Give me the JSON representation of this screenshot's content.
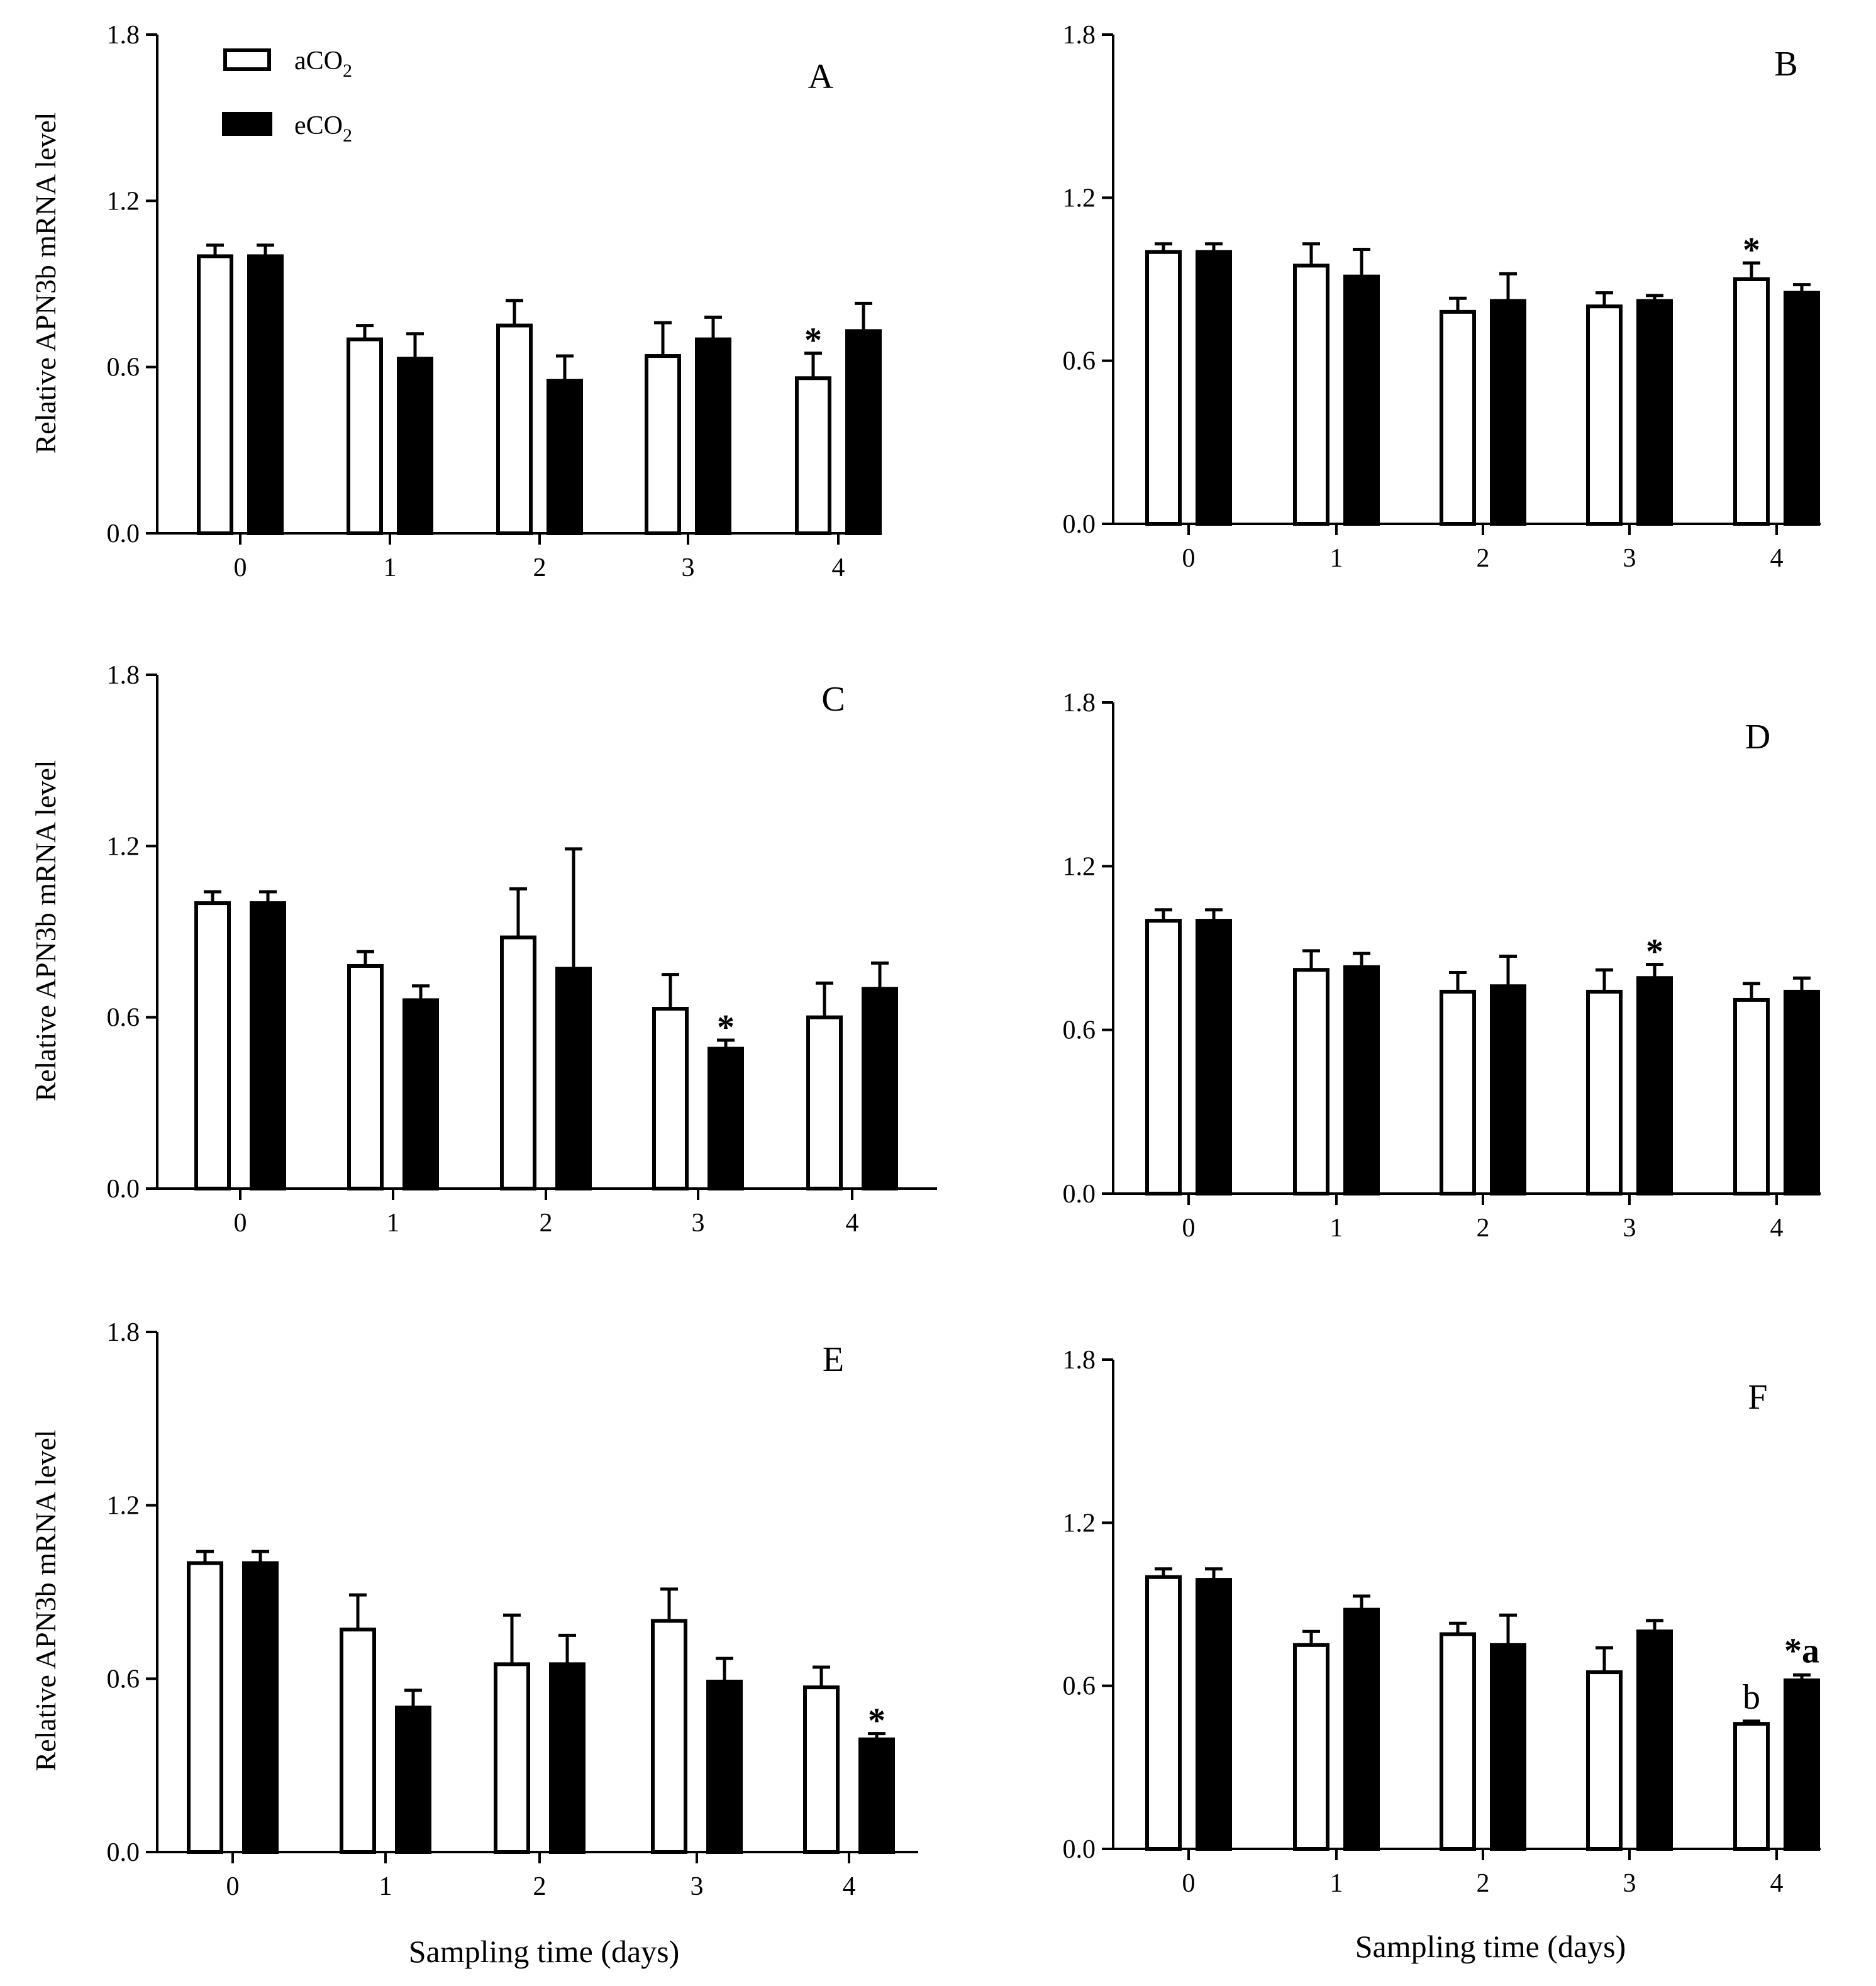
{
  "colors": {
    "aCO2": "#ffffff",
    "eCO2": "#000000",
    "stroke": "#000000"
  },
  "shared": {
    "ylabel": "Relative APN3b mRNA level",
    "xlabel": "Sampling time (days)",
    "legend": {
      "aCO2_prefix": "aCO",
      "eCO2_prefix": "eCO",
      "subscript": "2"
    }
  },
  "chart_data": [
    {
      "type": "bar",
      "panel": "A",
      "categories": [
        "0",
        "1",
        "2",
        "3",
        "4"
      ],
      "ylim": [
        0,
        1.8
      ],
      "yticks": [
        "0.0",
        "0.6",
        "1.2",
        "1.8"
      ],
      "series": [
        {
          "name": "aCO2",
          "values": [
            1.0,
            0.7,
            0.75,
            0.64,
            0.56
          ],
          "errors": [
            0.04,
            0.05,
            0.09,
            0.12,
            0.09
          ]
        },
        {
          "name": "eCO2",
          "values": [
            1.0,
            0.63,
            0.55,
            0.7,
            0.73
          ],
          "errors": [
            0.04,
            0.09,
            0.09,
            0.08,
            0.1
          ]
        }
      ],
      "annotations": [
        {
          "category": 4,
          "series": 0,
          "text": "*"
        }
      ]
    },
    {
      "type": "bar",
      "panel": "B",
      "categories": [
        "0",
        "1",
        "2",
        "3",
        "4"
      ],
      "ylim": [
        0,
        1.8
      ],
      "yticks": [
        "0.0",
        "0.6",
        "1.2",
        "1.8"
      ],
      "series": [
        {
          "name": "aCO2",
          "values": [
            1.0,
            0.95,
            0.78,
            0.8,
            0.9
          ],
          "errors": [
            0.03,
            0.08,
            0.05,
            0.05,
            0.06
          ]
        },
        {
          "name": "eCO2",
          "values": [
            1.0,
            0.91,
            0.82,
            0.82,
            0.85
          ],
          "errors": [
            0.03,
            0.1,
            0.1,
            0.02,
            0.03
          ]
        }
      ],
      "annotations": [
        {
          "category": 4,
          "series": 0,
          "text": "*"
        }
      ]
    },
    {
      "type": "bar",
      "panel": "C",
      "categories": [
        "0",
        "1",
        "2",
        "3",
        "4"
      ],
      "ylim": [
        0,
        1.8
      ],
      "yticks": [
        "0.0",
        "0.6",
        "1.2",
        "1.8"
      ],
      "series": [
        {
          "name": "aCO2",
          "values": [
            1.0,
            0.78,
            0.88,
            0.63,
            0.6
          ],
          "errors": [
            0.04,
            0.05,
            0.17,
            0.12,
            0.12
          ]
        },
        {
          "name": "eCO2",
          "values": [
            1.0,
            0.66,
            0.77,
            0.49,
            0.7
          ],
          "errors": [
            0.04,
            0.05,
            0.42,
            0.03,
            0.09
          ]
        }
      ],
      "annotations": [
        {
          "category": 3,
          "series": 1,
          "text": "*"
        }
      ]
    },
    {
      "type": "bar",
      "panel": "D",
      "categories": [
        "0",
        "1",
        "2",
        "3",
        "4"
      ],
      "ylim": [
        0,
        1.8
      ],
      "yticks": [
        "0.0",
        "0.6",
        "1.2",
        "1.8"
      ],
      "series": [
        {
          "name": "aCO2",
          "values": [
            1.0,
            0.82,
            0.74,
            0.74,
            0.71
          ],
          "errors": [
            0.04,
            0.07,
            0.07,
            0.08,
            0.06
          ]
        },
        {
          "name": "eCO2",
          "values": [
            1.0,
            0.83,
            0.76,
            0.79,
            0.74
          ],
          "errors": [
            0.04,
            0.05,
            0.11,
            0.05,
            0.05
          ]
        }
      ],
      "annotations": [
        {
          "category": 3,
          "series": 1,
          "text": "*"
        }
      ]
    },
    {
      "type": "bar",
      "panel": "E",
      "categories": [
        "0",
        "1",
        "2",
        "3",
        "4"
      ],
      "ylim": [
        0,
        1.8
      ],
      "yticks": [
        "0.0",
        "0.6",
        "1.2",
        "1.8"
      ],
      "series": [
        {
          "name": "aCO2",
          "values": [
            1.0,
            0.77,
            0.65,
            0.8,
            0.57
          ],
          "errors": [
            0.04,
            0.12,
            0.17,
            0.11,
            0.07
          ]
        },
        {
          "name": "eCO2",
          "values": [
            1.0,
            0.5,
            0.65,
            0.59,
            0.39
          ],
          "errors": [
            0.04,
            0.06,
            0.1,
            0.08,
            0.02
          ]
        }
      ],
      "annotations": [
        {
          "category": 4,
          "series": 1,
          "text": "*"
        }
      ]
    },
    {
      "type": "bar",
      "panel": "F",
      "categories": [
        "0",
        "1",
        "2",
        "3",
        "4"
      ],
      "ylim": [
        0,
        1.8
      ],
      "yticks": [
        "0.0",
        "0.6",
        "1.2",
        "1.8"
      ],
      "series": [
        {
          "name": "aCO2",
          "values": [
            1.0,
            0.75,
            0.79,
            0.65,
            0.46
          ],
          "errors": [
            0.03,
            0.05,
            0.04,
            0.09,
            0.01
          ]
        },
        {
          "name": "eCO2",
          "values": [
            0.99,
            0.88,
            0.75,
            0.8,
            0.62
          ],
          "errors": [
            0.04,
            0.05,
            0.11,
            0.04,
            0.02
          ]
        }
      ],
      "annotations": [
        {
          "category": 4,
          "series": 0,
          "text": "b"
        },
        {
          "category": 4,
          "series": 1,
          "text": "*a"
        }
      ]
    }
  ]
}
